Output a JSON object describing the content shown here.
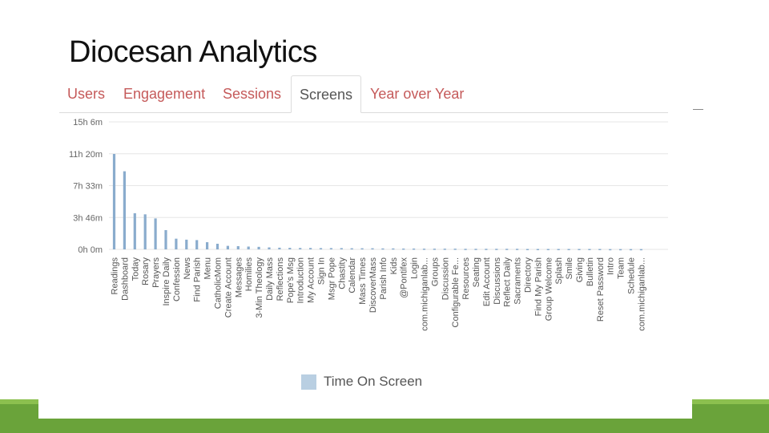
{
  "slide": {
    "title": "Diocesan Analytics"
  },
  "tabs": [
    {
      "label": "Users",
      "active": false
    },
    {
      "label": "Engagement",
      "active": false
    },
    {
      "label": "Sessions",
      "active": false
    },
    {
      "label": "Screens",
      "active": true
    },
    {
      "label": "Year over Year",
      "active": false
    }
  ],
  "colors": {
    "bar": "#8aaccd",
    "tab_link": "#c55a5a",
    "accent_green": "#6aa33a",
    "legend_swatch": "#b9cfe2"
  },
  "chart_data": {
    "type": "bar",
    "title": "",
    "xlabel": "",
    "ylabel": "",
    "ytick_labels": [
      "15h 6m",
      "11h 20m",
      "7h 33m",
      "3h 46m",
      "0h 0m"
    ],
    "ylim_minutes": [
      0,
      906
    ],
    "grid": true,
    "legend_position": "bottom",
    "categories": [
      "Readings",
      "Dashboard",
      "Today",
      "Rosary",
      "Prayers",
      "Inspire Daily",
      "Confession",
      "News",
      "Find Parish",
      "Menu",
      "CatholicMom",
      "Create Account",
      "Messages",
      "Homilies",
      "3-Min Theology",
      "Daily Mass",
      "Reflections",
      "Pope's Msg",
      "Introduction",
      "My Account",
      "Sign In",
      "Msgr Pope",
      "Chastity",
      "Calendar",
      "Mass Times",
      "DiscoverMass",
      "Parish Info",
      "Kids",
      "@Pontifex",
      "Login",
      "com.michiganlab...",
      "Groups",
      "Discussion",
      "Configurable Fe...",
      "Resources",
      "Seating",
      "Edit Account",
      "Discussions",
      "Reflect Daily",
      "Sacraments",
      "Directory",
      "Find My Parish",
      "Group Welcome",
      "Splash",
      "Smile",
      "Giving",
      "Bulletin",
      "Reset Password",
      "Intro",
      "Team",
      "Schedule",
      "com.michiganlab..."
    ],
    "series": [
      {
        "name": "Time On Screen",
        "values_minutes": [
          678,
          555,
          257,
          249,
          220,
          137,
          76,
          69,
          66,
          51,
          40,
          25,
          23,
          20,
          18,
          14,
          12,
          11,
          10,
          10,
          9,
          9,
          9,
          8,
          8,
          8,
          7,
          7,
          6,
          6,
          5,
          5,
          5,
          5,
          4,
          4,
          4,
          4,
          4,
          4,
          3,
          3,
          3,
          3,
          3,
          3,
          3,
          3,
          2,
          2,
          2,
          2
        ]
      }
    ]
  }
}
